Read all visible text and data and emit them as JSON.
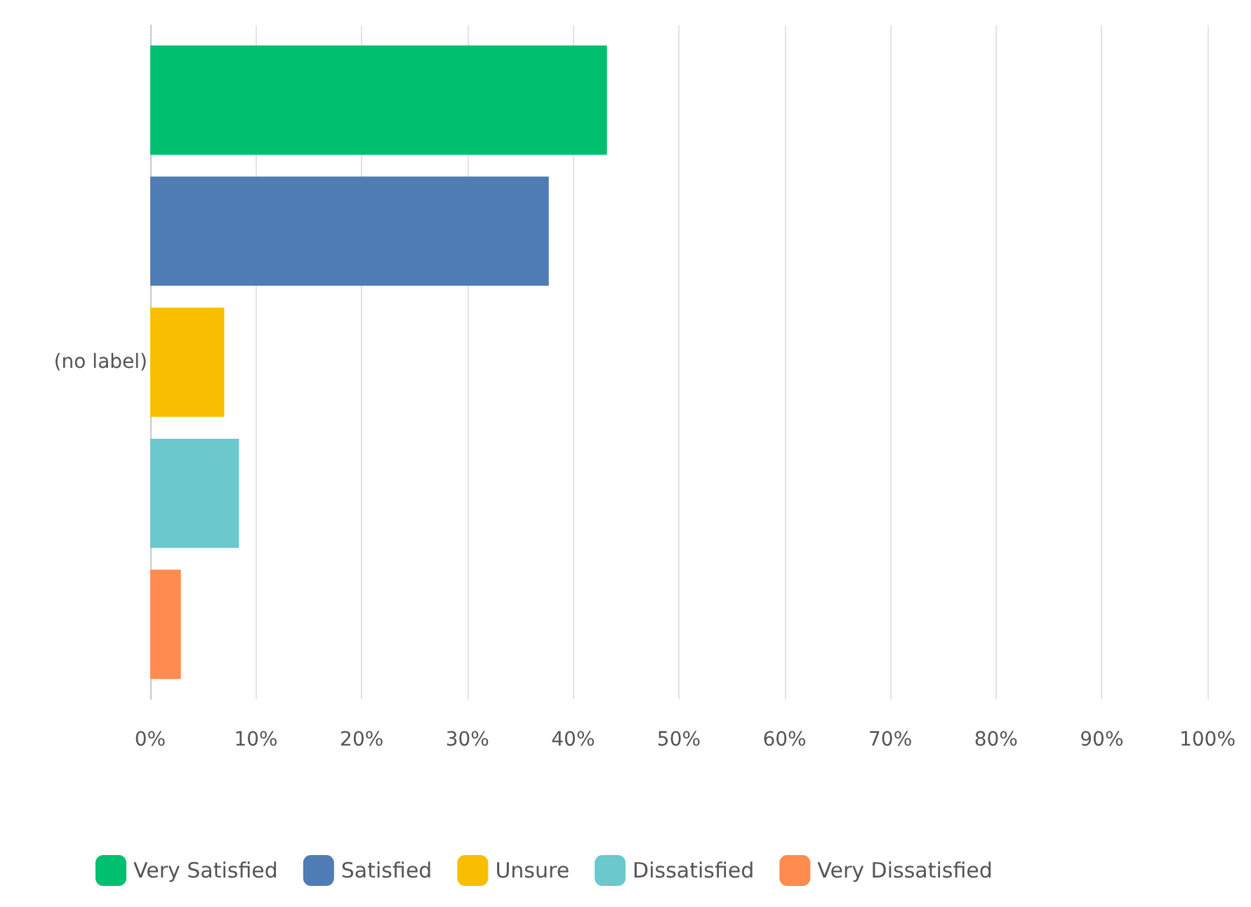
{
  "chart_data": {
    "type": "bar",
    "orientation": "horizontal",
    "categories": [
      "(no label)"
    ],
    "series": [
      {
        "name": "Very Satisfied",
        "color": "#00bf6f",
        "values": [
          43.2
        ]
      },
      {
        "name": "Satisfied",
        "color": "#507cb6",
        "values": [
          37.7
        ]
      },
      {
        "name": "Unsure",
        "color": "#f9be00",
        "values": [
          7.0
        ]
      },
      {
        "name": "Dissatisfied",
        "color": "#6bc8cd",
        "values": [
          8.4
        ]
      },
      {
        "name": "Very Dissatisfied",
        "color": "#ff8b4f",
        "values": [
          2.9
        ]
      }
    ],
    "xlim": [
      0,
      100
    ],
    "xticks": [
      {
        "value": 0,
        "label": "0%"
      },
      {
        "value": 10,
        "label": "10%"
      },
      {
        "value": 20,
        "label": "20%"
      },
      {
        "value": 30,
        "label": "30%"
      },
      {
        "value": 40,
        "label": "40%"
      },
      {
        "value": 50,
        "label": "50%"
      },
      {
        "value": 60,
        "label": "60%"
      },
      {
        "value": 70,
        "label": "70%"
      },
      {
        "value": 80,
        "label": "80%"
      },
      {
        "value": 90,
        "label": "90%"
      },
      {
        "value": 100,
        "label": "100%"
      }
    ],
    "grid": "x",
    "legend": "bottom left"
  }
}
